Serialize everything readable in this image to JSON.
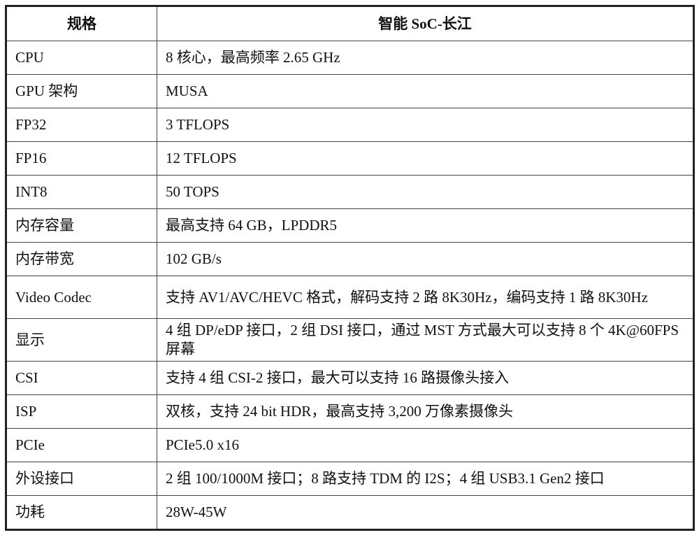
{
  "header": {
    "col1": "规格",
    "col2": "智能 SoC-长江"
  },
  "rows": [
    {
      "spec": "CPU",
      "value": "8 核心，最高频率 2.65 GHz"
    },
    {
      "spec": "GPU 架构",
      "value": "MUSA"
    },
    {
      "spec": "FP32",
      "value": "3 TFLOPS"
    },
    {
      "spec": "FP16",
      "value": "12 TFLOPS"
    },
    {
      "spec": "INT8",
      "value": "50 TOPS"
    },
    {
      "spec": "内存容量",
      "value": "最高支持 64 GB，LPDDR5"
    },
    {
      "spec": "内存带宽",
      "value": "102 GB/s"
    },
    {
      "spec": "Video Codec",
      "value": "支持 AV1/AVC/HEVC 格式，解码支持 2 路 8K30Hz，编码支持 1 路 8K30Hz"
    },
    {
      "spec": "显示",
      "value": "4 组 DP/eDP 接口，2 组 DSI 接口，通过 MST 方式最大可以支持 8 个 4K@60FPS 屏幕"
    },
    {
      "spec": "CSI",
      "value": "支持 4 组 CSI-2 接口，最大可以支持 16 路摄像头接入"
    },
    {
      "spec": "ISP",
      "value": "双核，支持 24 bit HDR，最高支持 3,200 万像素摄像头"
    },
    {
      "spec": "PCIe",
      "value": "PCIe5.0 x16"
    },
    {
      "spec": "外设接口",
      "value": "2 组 100/1000M 接口；8 路支持 TDM 的 I2S；4 组 USB3.1 Gen2 接口"
    },
    {
      "spec": "功耗",
      "value": "28W-45W"
    }
  ]
}
